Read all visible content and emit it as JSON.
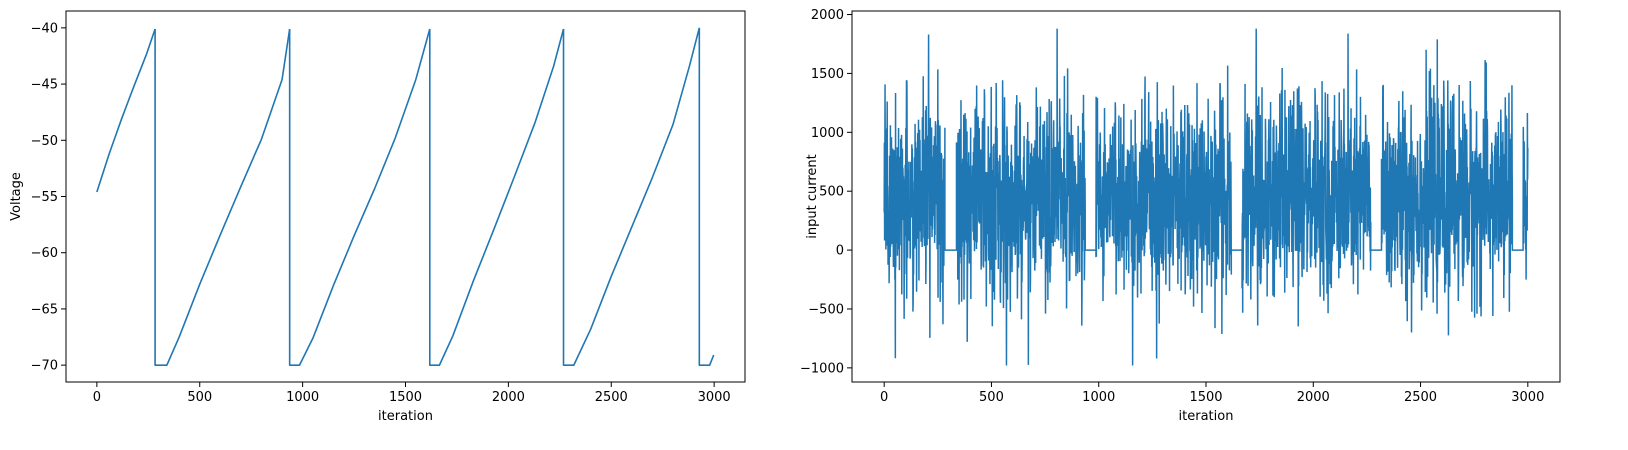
{
  "chart_data": [
    {
      "type": "line",
      "title": "",
      "xlabel": "iteration",
      "ylabel": "Voltage",
      "xlim": [
        -150,
        3150
      ],
      "ylim": [
        -71.5,
        -38.5
      ],
      "xticks": [
        0,
        500,
        1000,
        1500,
        2000,
        2500,
        3000
      ],
      "yticks": [
        -70,
        -65,
        -60,
        -55,
        -50,
        -45,
        -40
      ],
      "line_color": "#1f77b4",
      "grid": false,
      "series": [
        {
          "segments": [
            {
              "x": [
                0,
                60,
                120,
                180,
                240,
                283
              ],
              "y": [
                -54.6,
                -51.2,
                -48.1,
                -45.2,
                -42.4,
                -40.1
              ]
            },
            {
              "x": [
                283,
                283,
                340,
                400,
                500,
                600,
                700,
                800,
                900,
                937
              ],
              "y": [
                -40.1,
                -70,
                -70,
                -67.5,
                -62.8,
                -58.4,
                -54.1,
                -49.9,
                -44.6,
                -40.1
              ]
            },
            {
              "x": [
                937,
                937,
                985,
                1050,
                1150,
                1250,
                1350,
                1450,
                1550,
                1618
              ],
              "y": [
                -40.1,
                -70,
                -70,
                -67.6,
                -62.9,
                -58.5,
                -54.3,
                -49.8,
                -44.6,
                -40.1
              ]
            },
            {
              "x": [
                1618,
                1618,
                1665,
                1730,
                1830,
                1930,
                2030,
                2130,
                2220,
                2268
              ],
              "y": [
                -40.1,
                -70,
                -70,
                -67.4,
                -62.5,
                -57.9,
                -53.2,
                -48.4,
                -43.4,
                -40.1
              ]
            },
            {
              "x": [
                2268,
                2268,
                2318,
                2400,
                2500,
                2600,
                2700,
                2800,
                2880,
                2928
              ],
              "y": [
                -40.1,
                -70,
                -70,
                -66.8,
                -62.1,
                -57.7,
                -53.3,
                -48.6,
                -43.4,
                -40.0
              ]
            },
            {
              "x": [
                2928,
                2928,
                2978,
                2998
              ],
              "y": [
                -40.0,
                -70,
                -70,
                -69.1
              ]
            }
          ]
        }
      ]
    },
    {
      "type": "line",
      "title": "",
      "xlabel": "iteration",
      "ylabel": "input current",
      "xlim": [
        -150,
        3150
      ],
      "ylim": [
        -1120,
        2030
      ],
      "xticks": [
        0,
        500,
        1000,
        1500,
        2000,
        2500,
        3000
      ],
      "yticks": [
        -1000,
        -500,
        0,
        500,
        1000,
        1500,
        2000
      ],
      "line_color": "#1f77b4",
      "grid": false,
      "noise": {
        "mean": 450,
        "sd": 420,
        "min": -980,
        "max": 1880,
        "seed": 7
      },
      "active_ranges": [
        [
          0,
          283
        ],
        [
          337,
          937
        ],
        [
          987,
          1618
        ],
        [
          1668,
          2268
        ],
        [
          2318,
          2928
        ],
        [
          2978,
          3000
        ]
      ],
      "zero_ranges": [
        [
          283,
          337
        ],
        [
          937,
          987
        ],
        [
          1618,
          1668
        ],
        [
          2268,
          2318
        ],
        [
          2928,
          2978
        ]
      ]
    }
  ]
}
